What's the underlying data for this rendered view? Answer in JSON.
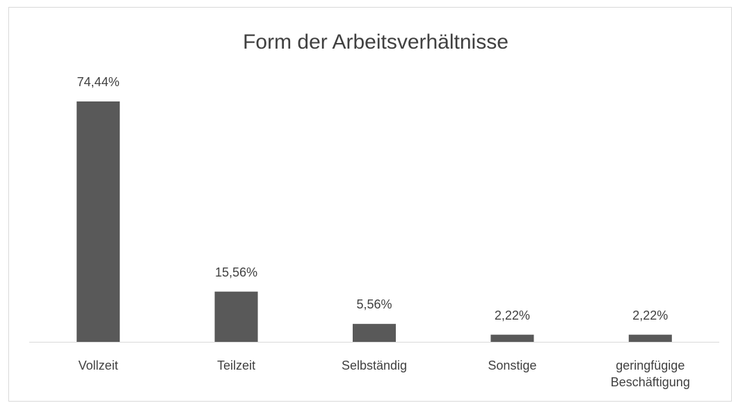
{
  "chart_data": {
    "type": "bar",
    "title": "Form der Arbeitsverhältnisse",
    "categories": [
      "Vollzeit",
      "Teilzeit",
      "Selbständig",
      "Sonstige",
      "geringfügige Beschäftigung"
    ],
    "values": [
      74.44,
      15.56,
      5.56,
      2.22,
      2.22
    ],
    "value_labels": [
      "74,44%",
      "15,56%",
      "5,56%",
      "2,22%",
      "2,22%"
    ],
    "color": "#595959"
  }
}
